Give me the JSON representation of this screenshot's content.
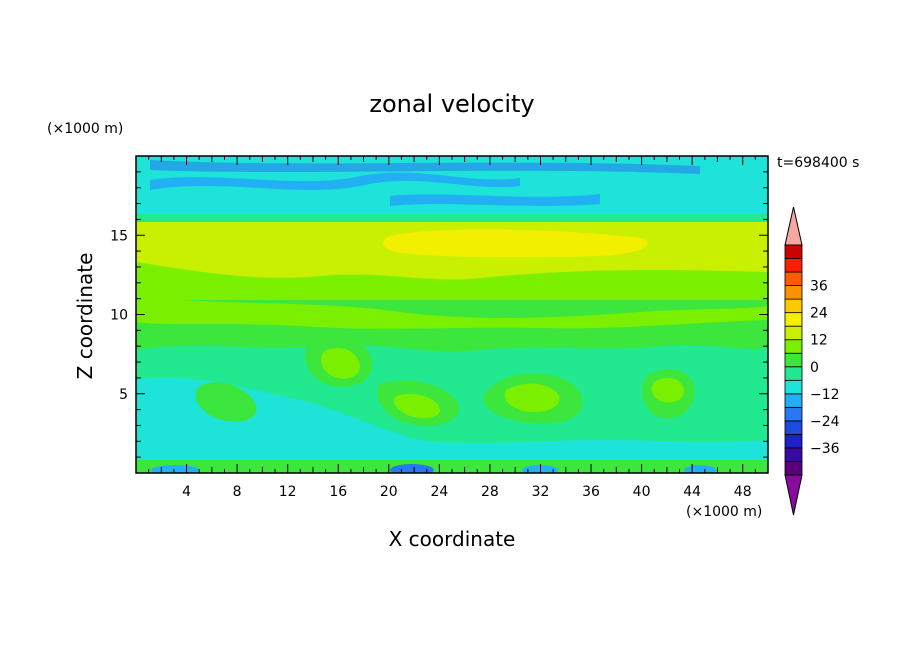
{
  "chart_data": {
    "type": "heatmap",
    "title": "zonal velocity",
    "xlabel": "X coordinate",
    "ylabel": "Z coordinate",
    "x_units": "(×1000 m)",
    "y_units": "(×1000 m)",
    "time_label": "t=698400 s",
    "xlim": [
      0,
      50
    ],
    "ylim": [
      0,
      20
    ],
    "x_ticks": [
      4,
      8,
      12,
      16,
      20,
      24,
      28,
      32,
      36,
      40,
      44,
      48
    ],
    "y_ticks": [
      5,
      10,
      15
    ],
    "colorbar": {
      "levels": [
        -42,
        -36,
        -30,
        -24,
        -18,
        -12,
        -6,
        0,
        6,
        12,
        18,
        24,
        30,
        36,
        42
      ],
      "labeled_levels": [
        -36,
        -24,
        -12,
        0,
        12,
        24,
        36
      ],
      "colors": [
        "#5a007a",
        "#3a0aa0",
        "#1f20c8",
        "#1f4ae0",
        "#2a78f0",
        "#22b0f5",
        "#1ee3d8",
        "#22e890",
        "#3ce63c",
        "#7af000",
        "#c8f000",
        "#f2f000",
        "#ffc800",
        "#ff9000",
        "#ff5a00",
        "#f81e00",
        "#cc0000"
      ],
      "under_color": "#8a0aa0",
      "over_color": "#f4a8a0"
    }
  }
}
